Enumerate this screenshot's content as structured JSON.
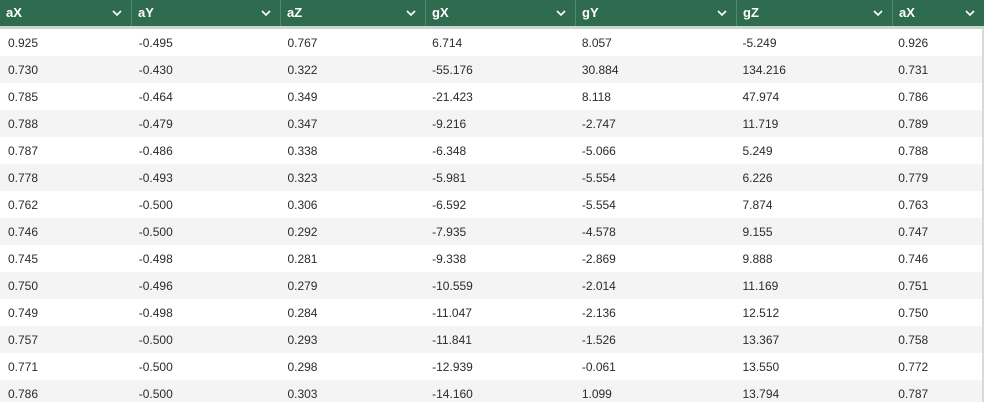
{
  "table": {
    "columns": [
      "aX",
      "aY",
      "aZ",
      "gX",
      "gY",
      "gZ",
      "aX"
    ],
    "rows": [
      [
        "0.925",
        "-0.495",
        "0.767",
        "6.714",
        "8.057",
        "-5.249",
        "0.926"
      ],
      [
        "0.730",
        "-0.430",
        "0.322",
        "-55.176",
        "30.884",
        "134.216",
        "0.731"
      ],
      [
        "0.785",
        "-0.464",
        "0.349",
        "-21.423",
        "8.118",
        "47.974",
        "0.786"
      ],
      [
        "0.788",
        "-0.479",
        "0.347",
        "-9.216",
        "-2.747",
        "11.719",
        "0.789"
      ],
      [
        "0.787",
        "-0.486",
        "0.338",
        "-6.348",
        "-5.066",
        "5.249",
        "0.788"
      ],
      [
        "0.778",
        "-0.493",
        "0.323",
        "-5.981",
        "-5.554",
        "6.226",
        "0.779"
      ],
      [
        "0.762",
        "-0.500",
        "0.306",
        "-6.592",
        "-5.554",
        "7.874",
        "0.763"
      ],
      [
        "0.746",
        "-0.500",
        "0.292",
        "-7.935",
        "-4.578",
        "9.155",
        "0.747"
      ],
      [
        "0.745",
        "-0.498",
        "0.281",
        "-9.338",
        "-2.869",
        "9.888",
        "0.746"
      ],
      [
        "0.750",
        "-0.496",
        "0.279",
        "-10.559",
        "-2.014",
        "11.169",
        "0.751"
      ],
      [
        "0.749",
        "-0.498",
        "0.284",
        "-11.047",
        "-2.136",
        "12.512",
        "0.750"
      ],
      [
        "0.757",
        "-0.500",
        "0.293",
        "-11.841",
        "-1.526",
        "13.367",
        "0.758"
      ],
      [
        "0.771",
        "-0.500",
        "0.298",
        "-12.939",
        "-0.061",
        "13.550",
        "0.772"
      ],
      [
        "0.786",
        "-0.500",
        "0.303",
        "-14.160",
        "1.099",
        "13.794",
        "0.787"
      ]
    ]
  },
  "icons": {
    "column_menu": "chevron-down-icon"
  },
  "colors": {
    "header_bg": "#2f6b4f",
    "header_text": "#ffffff",
    "row_alt_bg": "#f4f4f5"
  }
}
